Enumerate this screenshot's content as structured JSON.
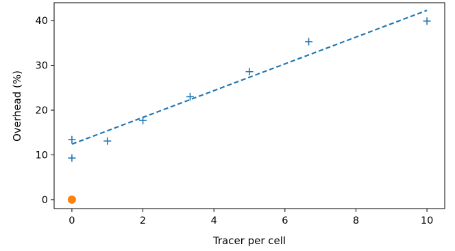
{
  "chart_data": {
    "type": "scatter",
    "title": "",
    "xlabel": "Tracer per cell",
    "ylabel": "Overhead (%)",
    "xlim": [
      -0.5,
      10.5
    ],
    "ylim": [
      -2,
      44
    ],
    "xticks": [
      0,
      2,
      4,
      6,
      8,
      10
    ],
    "yticks": [
      0,
      10,
      20,
      30,
      40
    ],
    "grid": false,
    "series": [
      {
        "marker": "plus",
        "color": "#1f77b4",
        "points": [
          {
            "x": 0,
            "y": 13.4
          },
          {
            "x": 0,
            "y": 9.3
          },
          {
            "x": 1,
            "y": 13.1
          },
          {
            "x": 2,
            "y": 17.7
          },
          {
            "x": 3.33,
            "y": 23.0
          },
          {
            "x": 5,
            "y": 28.6
          },
          {
            "x": 6.67,
            "y": 35.3
          },
          {
            "x": 10,
            "y": 39.9
          }
        ]
      },
      {
        "marker": "circle",
        "color": "#ff7f0e",
        "points": [
          {
            "x": 0,
            "y": 0
          }
        ]
      },
      {
        "marker": "dashed-line",
        "color": "#1f77b4",
        "points": [
          {
            "x": 0,
            "y": 12.4
          },
          {
            "x": 10,
            "y": 42.3
          }
        ]
      }
    ]
  }
}
